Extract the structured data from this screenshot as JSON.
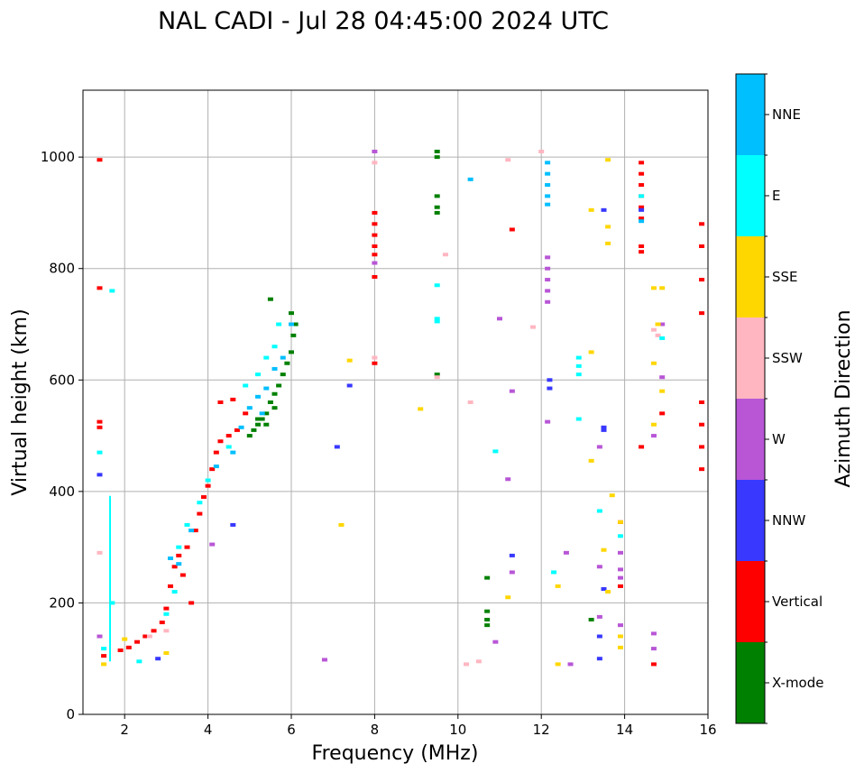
{
  "chart_data": {
    "type": "scatter",
    "title": "NAL CADI - Jul 28 04:45:00 2024 UTC",
    "xlabel": "Frequency (MHz)",
    "ylabel": "Virtual height (km)",
    "xlim": [
      1,
      16
    ],
    "ylim": [
      0,
      1120
    ],
    "xticks": [
      2,
      4,
      6,
      8,
      10,
      12,
      14,
      16
    ],
    "yticks": [
      0,
      200,
      400,
      600,
      800,
      1000
    ],
    "grid": true,
    "colorbar": {
      "label": "Azimuth Direction",
      "categories": [
        "X-mode",
        "Vertical",
        "NNW",
        "W",
        "SSW",
        "SSE",
        "E",
        "NNE"
      ],
      "colors": [
        "#008000",
        "#ff0000",
        "#3838ff",
        "#b856d6",
        "#ffb6c1",
        "#ffd700",
        "#00ffff",
        "#00bfff"
      ]
    },
    "series": [
      {
        "name": "X-mode",
        "points": [
          [
            5.0,
            500
          ],
          [
            5.1,
            510
          ],
          [
            5.2,
            520
          ],
          [
            5.3,
            530
          ],
          [
            5.4,
            540
          ],
          [
            5.5,
            560
          ],
          [
            5.6,
            575
          ],
          [
            5.7,
            590
          ],
          [
            5.8,
            610
          ],
          [
            5.9,
            630
          ],
          [
            6.0,
            650
          ],
          [
            6.05,
            680
          ],
          [
            6.1,
            700
          ],
          [
            6.0,
            720
          ],
          [
            5.5,
            745
          ],
          [
            5.2,
            530
          ],
          [
            5.4,
            520
          ],
          [
            5.6,
            550
          ],
          [
            9.5,
            1010
          ],
          [
            9.5,
            1000
          ],
          [
            9.5,
            930
          ],
          [
            9.5,
            910
          ],
          [
            9.5,
            900
          ],
          [
            9.5,
            610
          ],
          [
            10.7,
            245
          ],
          [
            10.7,
            185
          ],
          [
            10.7,
            170
          ],
          [
            10.7,
            160
          ],
          [
            13.2,
            170
          ]
        ]
      },
      {
        "name": "Vertical",
        "points": [
          [
            1.4,
            995
          ],
          [
            1.4,
            765
          ],
          [
            1.4,
            525
          ],
          [
            1.4,
            515
          ],
          [
            1.5,
            105
          ],
          [
            1.9,
            115
          ],
          [
            2.1,
            120
          ],
          [
            2.3,
            130
          ],
          [
            2.5,
            140
          ],
          [
            2.7,
            150
          ],
          [
            2.9,
            165
          ],
          [
            3.0,
            190
          ],
          [
            3.1,
            230
          ],
          [
            3.2,
            265
          ],
          [
            3.3,
            285
          ],
          [
            3.5,
            300
          ],
          [
            3.7,
            330
          ],
          [
            3.8,
            360
          ],
          [
            3.9,
            390
          ],
          [
            4.0,
            410
          ],
          [
            4.1,
            440
          ],
          [
            4.2,
            470
          ],
          [
            4.3,
            490
          ],
          [
            4.5,
            500
          ],
          [
            4.7,
            510
          ],
          [
            4.9,
            540
          ],
          [
            4.3,
            560
          ],
          [
            4.6,
            565
          ],
          [
            3.4,
            250
          ],
          [
            3.6,
            200
          ],
          [
            8.0,
            900
          ],
          [
            8.0,
            880
          ],
          [
            8.0,
            860
          ],
          [
            8.0,
            840
          ],
          [
            8.0,
            825
          ],
          [
            8.0,
            785
          ],
          [
            8.0,
            630
          ],
          [
            11.3,
            870
          ],
          [
            14.4,
            990
          ],
          [
            14.4,
            970
          ],
          [
            14.4,
            950
          ],
          [
            14.4,
            930
          ],
          [
            14.4,
            910
          ],
          [
            14.4,
            890
          ],
          [
            14.4,
            840
          ],
          [
            14.4,
            830
          ],
          [
            14.4,
            480
          ],
          [
            13.9,
            345
          ],
          [
            13.9,
            230
          ],
          [
            14.7,
            90
          ],
          [
            14.9,
            540
          ],
          [
            15.85,
            880
          ],
          [
            15.85,
            840
          ],
          [
            15.85,
            780
          ],
          [
            15.85,
            720
          ],
          [
            15.85,
            560
          ],
          [
            15.85,
            520
          ],
          [
            15.85,
            480
          ],
          [
            15.85,
            440
          ]
        ]
      },
      {
        "name": "NNW",
        "points": [
          [
            1.4,
            430
          ],
          [
            2.8,
            100
          ],
          [
            4.6,
            340
          ],
          [
            7.4,
            590
          ],
          [
            7.1,
            480
          ],
          [
            11.3,
            285
          ],
          [
            12.2,
            600
          ],
          [
            12.2,
            585
          ],
          [
            13.5,
            905
          ],
          [
            13.5,
            515
          ],
          [
            13.5,
            510
          ],
          [
            13.4,
            140
          ],
          [
            13.4,
            100
          ],
          [
            13.5,
            225
          ],
          [
            14.4,
            905
          ]
        ]
      },
      {
        "name": "W",
        "points": [
          [
            1.4,
            140
          ],
          [
            4.1,
            305
          ],
          [
            6.8,
            98
          ],
          [
            8.0,
            1010
          ],
          [
            8.0,
            810
          ],
          [
            11.3,
            255
          ],
          [
            11.3,
            580
          ],
          [
            11.2,
            422
          ],
          [
            10.9,
            130
          ],
          [
            12.15,
            820
          ],
          [
            12.15,
            800
          ],
          [
            12.15,
            780
          ],
          [
            12.15,
            760
          ],
          [
            12.15,
            740
          ],
          [
            12.15,
            525
          ],
          [
            12.6,
            290
          ],
          [
            12.7,
            90
          ],
          [
            13.4,
            480
          ],
          [
            13.4,
            265
          ],
          [
            13.4,
            175
          ],
          [
            13.9,
            290
          ],
          [
            13.9,
            260
          ],
          [
            13.9,
            245
          ],
          [
            13.9,
            160
          ],
          [
            14.7,
            145
          ],
          [
            14.7,
            118
          ],
          [
            14.9,
            605
          ],
          [
            14.9,
            700
          ],
          [
            14.7,
            500
          ],
          [
            11.0,
            710
          ]
        ]
      },
      {
        "name": "SSW",
        "points": [
          [
            1.4,
            290
          ],
          [
            2.6,
            140
          ],
          [
            3.0,
            150
          ],
          [
            8.0,
            990
          ],
          [
            8.0,
            640
          ],
          [
            9.5,
            605
          ],
          [
            9.7,
            825
          ],
          [
            11.2,
            995
          ],
          [
            12.0,
            1010
          ],
          [
            11.8,
            695
          ],
          [
            10.3,
            560
          ],
          [
            10.2,
            90
          ],
          [
            10.5,
            95
          ],
          [
            14.7,
            690
          ],
          [
            14.8,
            680
          ]
        ]
      },
      {
        "name": "SSE",
        "points": [
          [
            1.5,
            90
          ],
          [
            2.0,
            135
          ],
          [
            3.0,
            110
          ],
          [
            7.2,
            340
          ],
          [
            7.4,
            635
          ],
          [
            9.1,
            548
          ],
          [
            11.2,
            210
          ],
          [
            12.4,
            230
          ],
          [
            12.4,
            90
          ],
          [
            13.2,
            905
          ],
          [
            13.6,
            875
          ],
          [
            13.6,
            845
          ],
          [
            13.6,
            995
          ],
          [
            13.2,
            650
          ],
          [
            13.2,
            455
          ],
          [
            13.5,
            295
          ],
          [
            13.6,
            220
          ],
          [
            13.7,
            393
          ],
          [
            13.9,
            345
          ],
          [
            13.9,
            140
          ],
          [
            13.9,
            120
          ],
          [
            14.7,
            765
          ],
          [
            14.7,
            630
          ],
          [
            14.7,
            520
          ],
          [
            14.9,
            765
          ],
          [
            14.9,
            580
          ],
          [
            14.8,
            700
          ]
        ]
      },
      {
        "name": "E",
        "points": [
          [
            1.5,
            118
          ],
          [
            1.7,
            760
          ],
          [
            1.4,
            470
          ],
          [
            1.7,
            200
          ],
          [
            2.35,
            95
          ],
          [
            3.0,
            180
          ],
          [
            3.2,
            220
          ],
          [
            3.3,
            300
          ],
          [
            3.5,
            340
          ],
          [
            3.8,
            380
          ],
          [
            4.0,
            420
          ],
          [
            4.5,
            480
          ],
          [
            4.9,
            590
          ],
          [
            5.2,
            610
          ],
          [
            5.4,
            640
          ],
          [
            5.6,
            660
          ],
          [
            5.7,
            700
          ],
          [
            9.5,
            770
          ],
          [
            9.5,
            710
          ],
          [
            9.5,
            705
          ],
          [
            10.9,
            472
          ],
          [
            12.3,
            255
          ],
          [
            12.9,
            640
          ],
          [
            12.9,
            625
          ],
          [
            12.9,
            610
          ],
          [
            12.9,
            530
          ],
          [
            13.4,
            365
          ],
          [
            13.9,
            320
          ],
          [
            14.9,
            675
          ],
          [
            14.4,
            930
          ]
        ]
      },
      {
        "name": "NNE",
        "points": [
          [
            3.1,
            280
          ],
          [
            3.3,
            270
          ],
          [
            3.6,
            330
          ],
          [
            4.2,
            445
          ],
          [
            4.6,
            470
          ],
          [
            4.8,
            515
          ],
          [
            5.0,
            550
          ],
          [
            5.2,
            570
          ],
          [
            5.4,
            585
          ],
          [
            5.6,
            620
          ],
          [
            5.8,
            640
          ],
          [
            6.0,
            700
          ],
          [
            5.3,
            540
          ],
          [
            10.3,
            960
          ],
          [
            12.15,
            990
          ],
          [
            12.15,
            970
          ],
          [
            12.15,
            950
          ],
          [
            12.15,
            930
          ],
          [
            12.15,
            915
          ],
          [
            14.4,
            885
          ]
        ]
      }
    ],
    "lines": [
      {
        "series": "E",
        "x": 1.65,
        "y0": 95,
        "y1": 392
      }
    ]
  }
}
